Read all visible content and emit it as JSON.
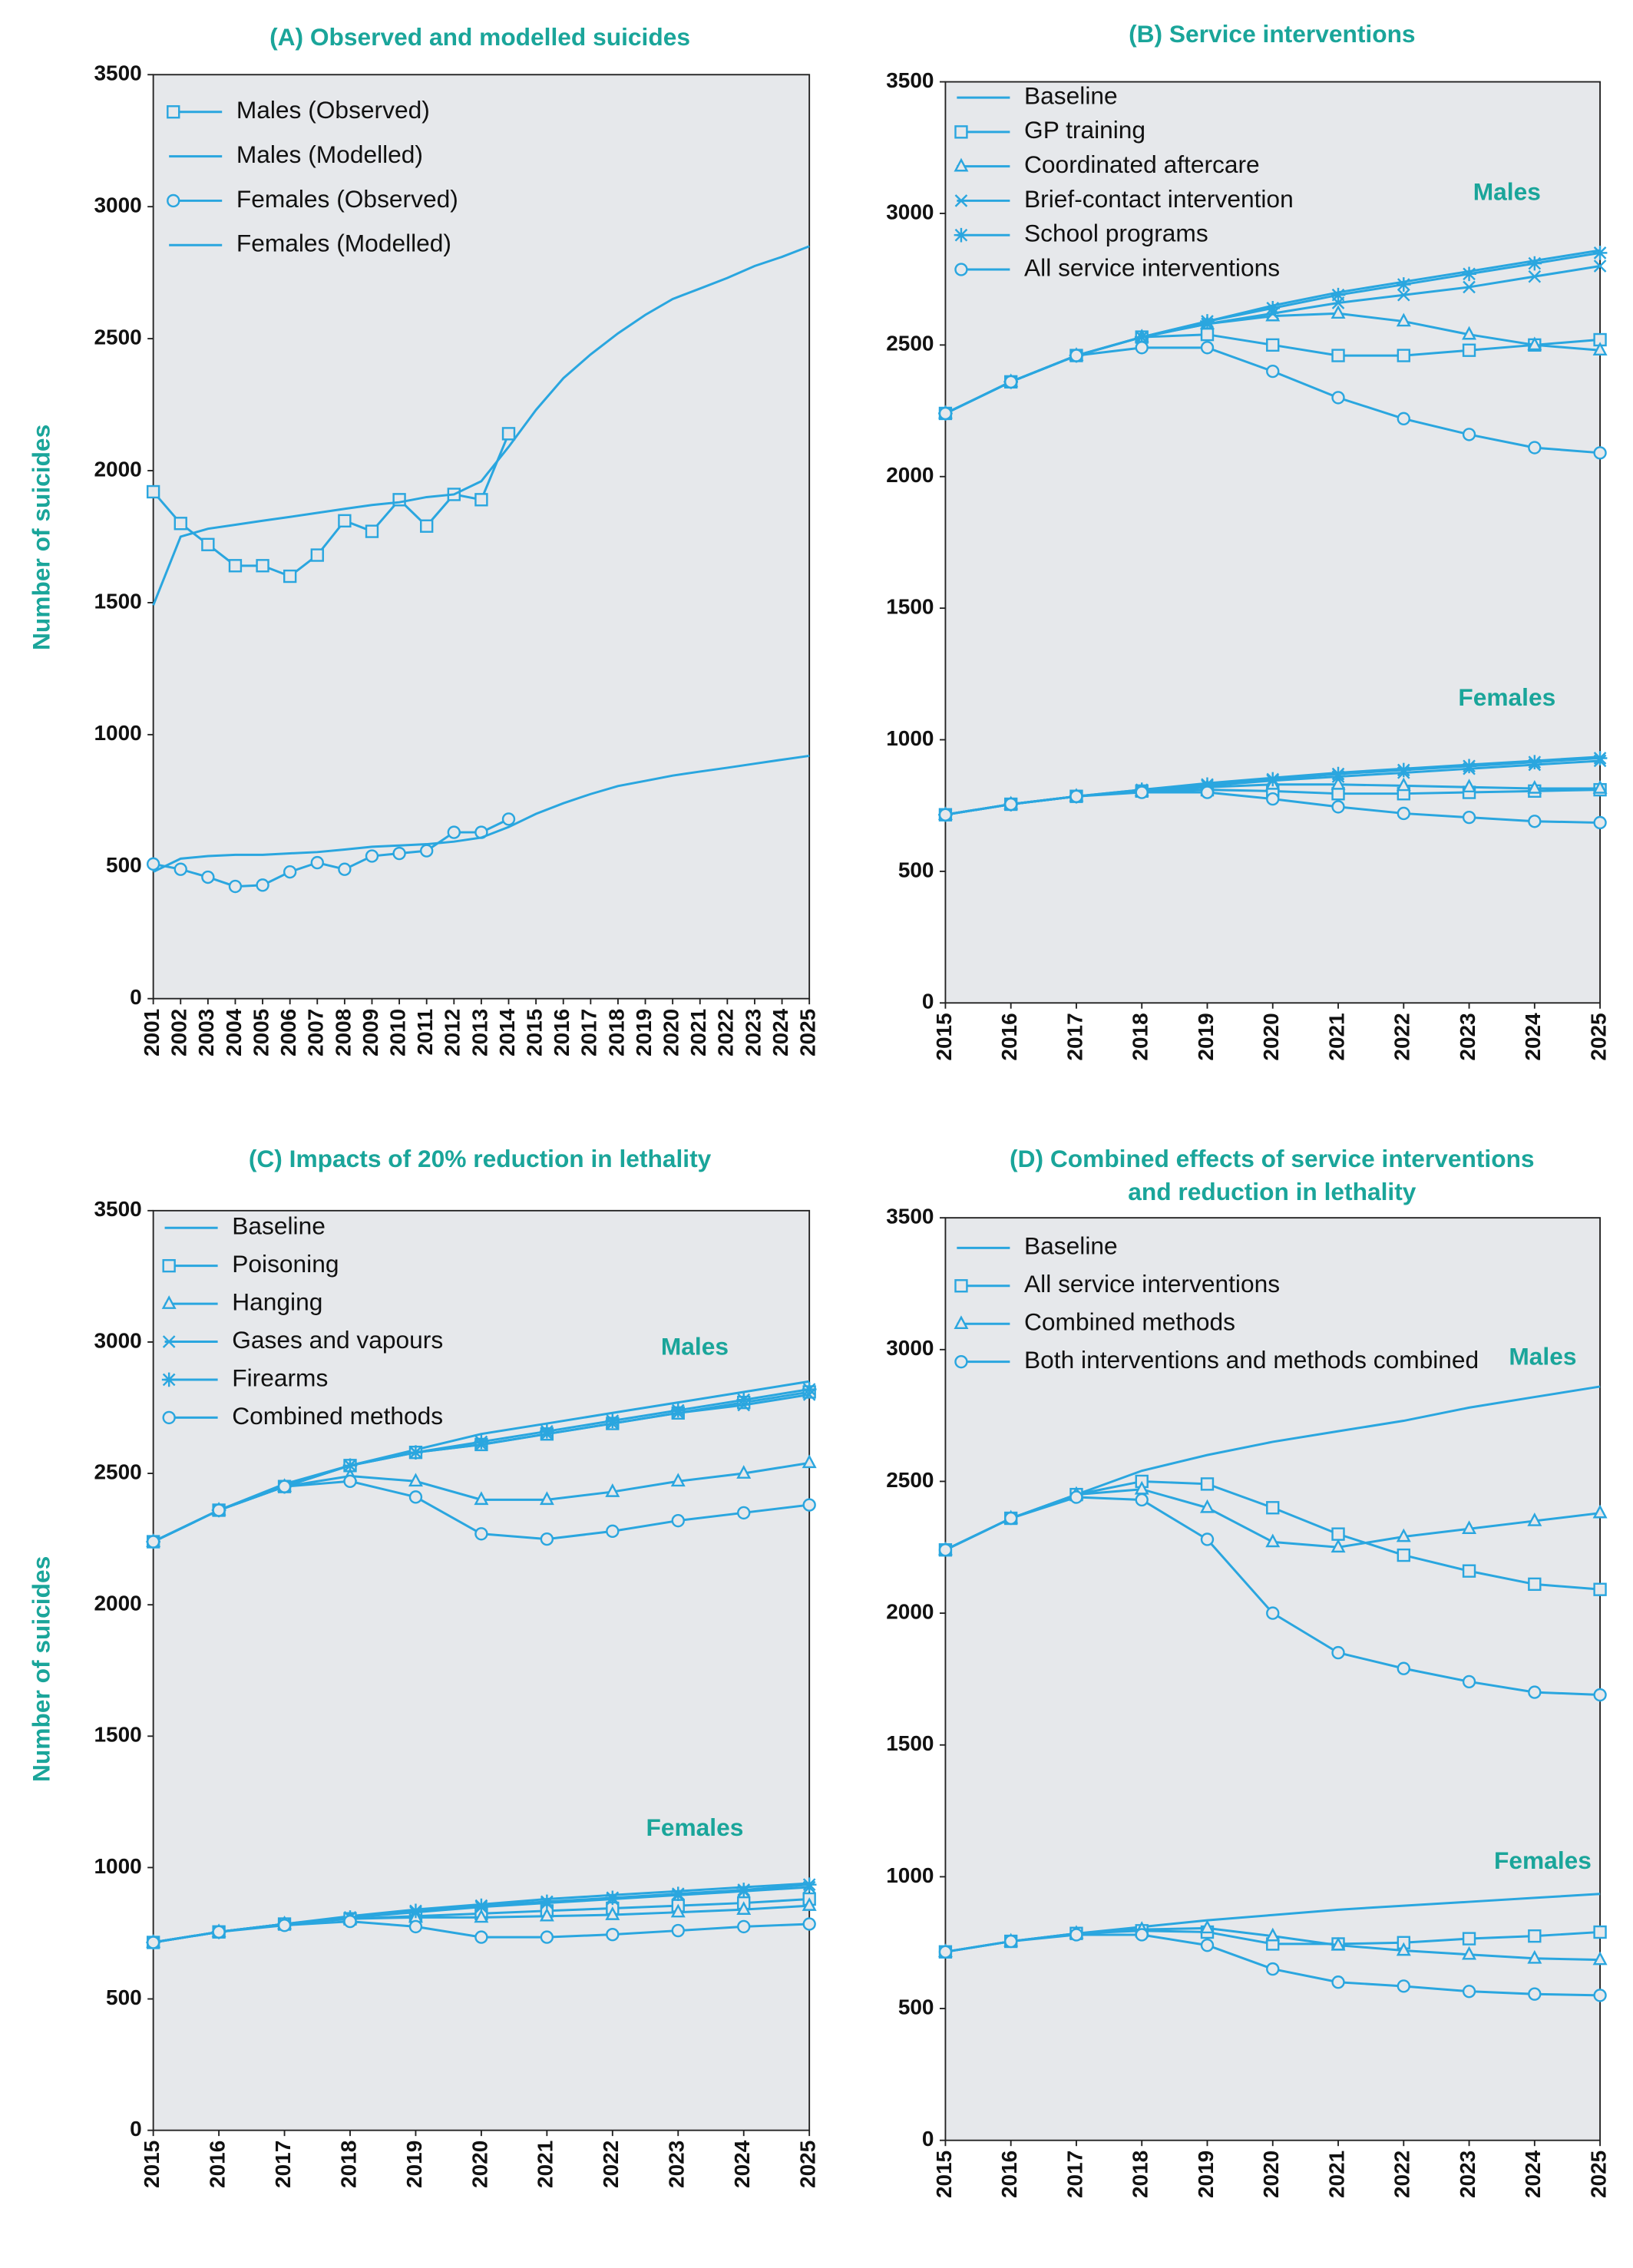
{
  "chart_data": [
    {
      "type": "line",
      "title": [
        "(A) Observed and modelled suicides"
      ],
      "ylabel": "Number of suicides",
      "x": [
        2001,
        2002,
        2003,
        2004,
        2005,
        2006,
        2007,
        2008,
        2009,
        2010,
        2011,
        2012,
        2013,
        2014,
        2015,
        2016,
        2017,
        2018,
        2019,
        2020,
        2021,
        2022,
        2023,
        2024,
        2025
      ],
      "xlim": [
        2001,
        2025
      ],
      "xticks": [
        2001,
        2002,
        2003,
        2004,
        2005,
        2006,
        2007,
        2008,
        2009,
        2010,
        2011,
        2012,
        2013,
        2014,
        2015,
        2016,
        2017,
        2018,
        2019,
        2020,
        2021,
        2022,
        2023,
        2024,
        2025
      ],
      "ylim": [
        0,
        3500
      ],
      "yticks": [
        0,
        500,
        1000,
        1500,
        2000,
        2500,
        3000,
        3500
      ],
      "color": "#2aa6df",
      "series": [
        {
          "name": "Males (Observed)",
          "marker": "square",
          "values": [
            1920,
            1800,
            1720,
            1640,
            1640,
            1600,
            1680,
            1810,
            1770,
            1890,
            1790,
            1910,
            1890,
            2140,
            null,
            null,
            null,
            null,
            null,
            null,
            null,
            null,
            null,
            null,
            null
          ]
        },
        {
          "name": "Males (Modelled)",
          "marker": "none",
          "values": [
            1490,
            1750,
            1780,
            1795,
            1810,
            1825,
            1840,
            1855,
            1870,
            1880,
            1900,
            1910,
            1960,
            2090,
            2230,
            2350,
            2440,
            2520,
            2590,
            2650,
            2690,
            2730,
            2775,
            2810,
            2850
          ]
        },
        {
          "name": "Females (Observed)",
          "marker": "circle",
          "values": [
            510,
            490,
            460,
            425,
            430,
            480,
            515,
            490,
            540,
            550,
            560,
            630,
            630,
            680,
            null,
            null,
            null,
            null,
            null,
            null,
            null,
            null,
            null,
            null,
            null
          ]
        },
        {
          "name": "Females (Modelled)",
          "marker": "none",
          "values": [
            480,
            530,
            540,
            545,
            545,
            550,
            555,
            565,
            575,
            580,
            585,
            595,
            610,
            650,
            700,
            740,
            775,
            805,
            825,
            845,
            860,
            875,
            890,
            905,
            920
          ]
        }
      ]
    },
    {
      "type": "line",
      "title": [
        "(B) Service interventions"
      ],
      "annotations": [
        "Males",
        "Females"
      ],
      "x": [
        2015,
        2016,
        2017,
        2018,
        2019,
        2020,
        2021,
        2022,
        2023,
        2024,
        2025
      ],
      "xlim": [
        2015,
        2025
      ],
      "xticks": [
        2015,
        2016,
        2017,
        2018,
        2019,
        2020,
        2021,
        2022,
        2023,
        2024,
        2025
      ],
      "ylim": [
        0,
        3500
      ],
      "yticks": [
        0,
        500,
        1000,
        1500,
        2000,
        2500,
        3000,
        3500
      ],
      "color": "#2aa6df",
      "series": [
        {
          "name": "Baseline",
          "marker": "none",
          "males": [
            2240,
            2360,
            2460,
            2530,
            2590,
            2650,
            2700,
            2740,
            2780,
            2820,
            2860
          ],
          "females": [
            715,
            755,
            785,
            810,
            835,
            855,
            875,
            890,
            905,
            920,
            935
          ]
        },
        {
          "name": "GP training",
          "marker": "square",
          "males": [
            2240,
            2360,
            2460,
            2530,
            2540,
            2500,
            2460,
            2460,
            2480,
            2500,
            2520
          ],
          "females": [
            715,
            755,
            785,
            805,
            810,
            805,
            795,
            795,
            800,
            805,
            810
          ]
        },
        {
          "name": "Coordinated aftercare",
          "marker": "triangle",
          "males": [
            2240,
            2360,
            2460,
            2530,
            2580,
            2610,
            2620,
            2590,
            2540,
            2500,
            2480
          ],
          "females": [
            715,
            755,
            785,
            805,
            820,
            830,
            830,
            825,
            820,
            815,
            815
          ]
        },
        {
          "name": "Brief-contact intervention",
          "marker": "x",
          "males": [
            2240,
            2360,
            2460,
            2530,
            2580,
            2620,
            2660,
            2690,
            2720,
            2760,
            2800
          ],
          "females": [
            715,
            755,
            785,
            805,
            825,
            845,
            860,
            875,
            890,
            905,
            920
          ]
        },
        {
          "name": "School programs",
          "marker": "star",
          "males": [
            2240,
            2360,
            2460,
            2530,
            2590,
            2640,
            2690,
            2730,
            2770,
            2810,
            2850
          ],
          "females": [
            715,
            755,
            785,
            810,
            830,
            850,
            870,
            885,
            900,
            915,
            930
          ]
        },
        {
          "name": "All service interventions",
          "marker": "circle",
          "males": [
            2240,
            2360,
            2460,
            2490,
            2490,
            2400,
            2300,
            2220,
            2160,
            2110,
            2090
          ],
          "females": [
            715,
            755,
            785,
            800,
            800,
            775,
            745,
            720,
            705,
            690,
            685
          ]
        }
      ]
    },
    {
      "type": "line",
      "title": [
        "(C) Impacts of 20% reduction in lethality"
      ],
      "ylabel": "Number of suicides",
      "annotations": [
        "Males",
        "Females"
      ],
      "x": [
        2015,
        2016,
        2017,
        2018,
        2019,
        2020,
        2021,
        2022,
        2023,
        2024,
        2025
      ],
      "xlim": [
        2015,
        2025
      ],
      "xticks": [
        2015,
        2016,
        2017,
        2018,
        2019,
        2020,
        2021,
        2022,
        2023,
        2024,
        2025
      ],
      "ylim": [
        0,
        3500
      ],
      "yticks": [
        0,
        500,
        1000,
        1500,
        2000,
        2500,
        3000,
        3500
      ],
      "color": "#2aa6df",
      "series": [
        {
          "name": "Baseline",
          "marker": "none",
          "males": [
            2240,
            2360,
            2460,
            2530,
            2590,
            2650,
            2690,
            2730,
            2770,
            2810,
            2850
          ],
          "females": [
            715,
            755,
            785,
            815,
            840,
            860,
            880,
            895,
            910,
            925,
            940
          ]
        },
        {
          "name": "Poisoning",
          "marker": "square",
          "males": [
            2240,
            2360,
            2450,
            2530,
            2580,
            2610,
            2650,
            2690,
            2730,
            2770,
            2810
          ],
          "females": [
            715,
            755,
            785,
            805,
            815,
            825,
            835,
            845,
            855,
            865,
            880
          ]
        },
        {
          "name": "Hanging",
          "marker": "triangle",
          "males": [
            2240,
            2360,
            2450,
            2490,
            2470,
            2400,
            2400,
            2430,
            2470,
            2500,
            2540
          ],
          "females": [
            715,
            755,
            785,
            805,
            810,
            810,
            815,
            820,
            830,
            840,
            855
          ]
        },
        {
          "name": "Gases and vapours",
          "marker": "x",
          "males": [
            2240,
            2360,
            2450,
            2530,
            2580,
            2610,
            2650,
            2690,
            2730,
            2760,
            2800
          ],
          "females": [
            715,
            755,
            785,
            810,
            830,
            850,
            865,
            880,
            895,
            910,
            925
          ]
        },
        {
          "name": "Firearms",
          "marker": "star",
          "males": [
            2240,
            2360,
            2450,
            2530,
            2580,
            2620,
            2660,
            2700,
            2740,
            2780,
            2820
          ],
          "females": [
            715,
            755,
            785,
            810,
            835,
            855,
            870,
            885,
            900,
            915,
            935
          ]
        },
        {
          "name": "Combined methods",
          "marker": "circle",
          "males": [
            2240,
            2360,
            2450,
            2470,
            2410,
            2270,
            2250,
            2280,
            2320,
            2350,
            2380
          ],
          "females": [
            715,
            755,
            780,
            795,
            775,
            735,
            735,
            745,
            760,
            775,
            785
          ]
        }
      ]
    },
    {
      "type": "line",
      "title": [
        "(D) Combined effects of service interventions",
        "and reduction in lethality"
      ],
      "annotations": [
        "Males",
        "Females"
      ],
      "x": [
        2015,
        2016,
        2017,
        2018,
        2019,
        2020,
        2021,
        2022,
        2023,
        2024,
        2025
      ],
      "xlim": [
        2015,
        2025
      ],
      "xticks": [
        2015,
        2016,
        2017,
        2018,
        2019,
        2020,
        2021,
        2022,
        2023,
        2024,
        2025
      ],
      "ylim": [
        0,
        3500
      ],
      "yticks": [
        0,
        500,
        1000,
        1500,
        2000,
        2500,
        3000,
        3500
      ],
      "color": "#2aa6df",
      "series": [
        {
          "name": "Baseline",
          "marker": "none",
          "males": [
            2240,
            2360,
            2450,
            2540,
            2600,
            2650,
            2690,
            2730,
            2780,
            2820,
            2860
          ],
          "females": [
            715,
            755,
            785,
            810,
            835,
            855,
            875,
            890,
            905,
            920,
            935
          ]
        },
        {
          "name": "All service interventions",
          "marker": "square",
          "males": [
            2240,
            2360,
            2450,
            2500,
            2490,
            2400,
            2300,
            2220,
            2160,
            2110,
            2090
          ],
          "females": [
            715,
            755,
            785,
            795,
            790,
            745,
            745,
            750,
            765,
            775,
            790
          ]
        },
        {
          "name": "Combined methods",
          "marker": "triangle",
          "males": [
            2240,
            2360,
            2450,
            2470,
            2400,
            2270,
            2250,
            2290,
            2320,
            2350,
            2380
          ],
          "females": [
            715,
            755,
            785,
            800,
            805,
            775,
            740,
            720,
            705,
            690,
            685
          ]
        },
        {
          "name": "Both interventions and methods combined",
          "marker": "circle",
          "males": [
            2240,
            2360,
            2440,
            2430,
            2280,
            2000,
            1850,
            1790,
            1740,
            1700,
            1690
          ],
          "females": [
            715,
            755,
            780,
            780,
            740,
            650,
            600,
            585,
            565,
            555,
            550
          ]
        }
      ]
    }
  ]
}
